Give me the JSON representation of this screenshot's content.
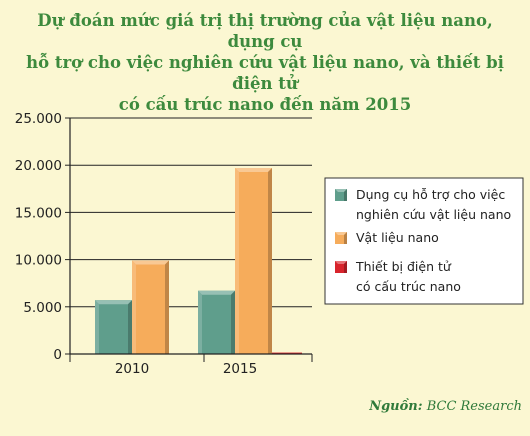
{
  "chart_data": {
    "type": "bar",
    "title_lines": [
      "Dự đoán mức giá trị thị trường của vật liệu nano, dụng cụ",
      "hỗ trợ cho việc nghiên cứu vật liệu nano, và thiết bị điện tử",
      "có cấu trúc nano đến năm 2015"
    ],
    "categories": [
      "2010",
      "2015"
    ],
    "series": [
      {
        "name": "Dụng cụ hỗ trợ cho việc nghiên cứu vật liệu nano",
        "legend_lines": [
          "Dụng cụ hỗ trợ cho việc",
          "nghiên cứu vật liệu nano"
        ],
        "values": [
          5700,
          6700
        ],
        "color": "#5f9e8c"
      },
      {
        "name": "Vật liệu nano",
        "legend_lines": [
          "Vật liệu nano"
        ],
        "values": [
          9900,
          19700
        ],
        "color": "#f6ac5b"
      },
      {
        "name": "Thiết bị điện tử có cấu trúc nano",
        "legend_lines": [
          "Thiết bị điện tử",
          "có cấu trúc nano"
        ],
        "values": [
          0,
          150
        ],
        "color": "#d8242c"
      }
    ],
    "y_ticks": [
      "25.000",
      "20.000",
      "15.000",
      "10.000",
      "5.000",
      "0"
    ],
    "y_tick_values": [
      25000,
      20000,
      15000,
      10000,
      5000,
      0
    ],
    "ylim": [
      0,
      25000
    ],
    "grid": true,
    "legend_position": "right"
  },
  "source": {
    "label": "Nguồn:",
    "text": "BCC Research"
  }
}
